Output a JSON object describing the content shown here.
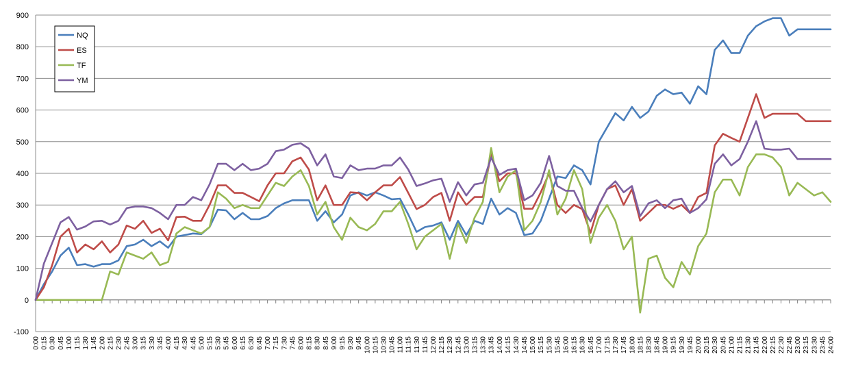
{
  "chart_data": {
    "type": "line",
    "xlabel": "",
    "ylabel": "",
    "ylim": [
      -100,
      900
    ],
    "yticks": [
      "-100",
      "0",
      "100",
      "200",
      "300",
      "400",
      "500",
      "600",
      "700",
      "800",
      "900"
    ],
    "grid": "horizontal",
    "legend": "top-left",
    "x_labels": [
      "0:00",
      "0:15",
      "0:30",
      "0:45",
      "1:00",
      "1:15",
      "1:30",
      "1:45",
      "2:00",
      "2:15",
      "2:30",
      "2:45",
      "3:00",
      "3:15",
      "3:30",
      "3:45",
      "4:00",
      "4:15",
      "4:30",
      "4:45",
      "5:00",
      "5:15",
      "5:30",
      "5:45",
      "6:00",
      "6:15",
      "6:30",
      "6:45",
      "7:00",
      "7:15",
      "7:30",
      "7:45",
      "8:00",
      "8:15",
      "8:30",
      "8:45",
      "9:00",
      "9:15",
      "9:30",
      "9:45",
      "10:00",
      "10:15",
      "10:30",
      "10:45",
      "11:00",
      "11:15",
      "11:30",
      "11:45",
      "12:00",
      "12:15",
      "12:30",
      "12:45",
      "13:00",
      "13:15",
      "13:30",
      "13:45",
      "14:00",
      "14:15",
      "14:30",
      "14:45",
      "15:00",
      "15:15",
      "15:30",
      "15:45",
      "16:00",
      "16:15",
      "16:30",
      "16:45",
      "17:00",
      "17:15",
      "17:30",
      "17:45",
      "18:00",
      "18:15",
      "18:30",
      "18:45",
      "19:00",
      "19:15",
      "19:30",
      "19:45",
      "20:00",
      "20:15",
      "20:30",
      "20:45",
      "21:00",
      "21:15",
      "21:30",
      "21:45",
      "22:00",
      "22:15",
      "22:30",
      "22:45",
      "23:00",
      "23:15",
      "23:30",
      "23:45",
      "24:00"
    ],
    "series": [
      {
        "name": "NQ",
        "color": "#4a7ebb",
        "values": [
          0,
          50,
          90,
          140,
          165,
          110,
          113,
          105,
          113,
          113,
          125,
          170,
          175,
          190,
          170,
          185,
          165,
          200,
          205,
          210,
          208,
          230,
          285,
          283,
          255,
          275,
          255,
          255,
          265,
          290,
          305,
          315,
          315,
          315,
          250,
          280,
          245,
          270,
          330,
          340,
          330,
          340,
          330,
          318,
          320,
          270,
          215,
          230,
          235,
          245,
          190,
          250,
          205,
          250,
          240,
          320,
          270,
          290,
          275,
          205,
          210,
          250,
          320,
          390,
          385,
          425,
          410,
          365,
          500,
          545,
          590,
          567,
          610,
          575,
          595,
          645,
          665,
          650,
          655,
          620,
          675,
          650,
          790,
          820,
          780,
          780,
          835,
          865,
          880,
          890,
          890,
          835,
          855,
          855,
          855,
          855,
          855
        ]
      },
      {
        "name": "ES",
        "color": "#be4b48",
        "values": [
          0,
          40,
          110,
          200,
          225,
          150,
          175,
          160,
          185,
          150,
          175,
          235,
          225,
          250,
          212,
          225,
          188,
          262,
          263,
          250,
          250,
          300,
          362,
          362,
          338,
          338,
          325,
          312,
          362,
          400,
          400,
          438,
          450,
          412,
          315,
          362,
          300,
          300,
          340,
          338,
          315,
          340,
          362,
          362,
          388,
          338,
          287,
          300,
          325,
          338,
          250,
          340,
          300,
          325,
          325,
          462,
          375,
          400,
          400,
          288,
          288,
          340,
          400,
          300,
          275,
          300,
          287,
          212,
          300,
          350,
          362,
          300,
          350,
          250,
          275,
          300,
          300,
          288,
          300,
          275,
          325,
          338,
          488,
          525,
          512,
          500,
          575,
          650,
          575,
          588,
          588,
          588,
          588,
          565,
          565,
          565,
          565
        ]
      },
      {
        "name": "TF",
        "color": "#98b954",
        "values": [
          0,
          0,
          0,
          0,
          0,
          0,
          0,
          0,
          0,
          90,
          80,
          150,
          140,
          130,
          150,
          110,
          120,
          210,
          230,
          220,
          210,
          230,
          340,
          320,
          290,
          300,
          290,
          290,
          330,
          370,
          360,
          390,
          410,
          360,
          270,
          310,
          230,
          190,
          260,
          230,
          220,
          240,
          280,
          280,
          310,
          240,
          160,
          200,
          220,
          240,
          130,
          240,
          180,
          260,
          310,
          480,
          340,
          390,
          410,
          220,
          250,
          310,
          410,
          270,
          320,
          410,
          350,
          180,
          260,
          300,
          250,
          160,
          200,
          -40,
          130,
          140,
          70,
          40,
          120,
          80,
          170,
          210,
          340,
          380,
          380,
          330,
          420,
          460,
          460,
          450,
          420,
          330,
          370,
          350,
          330,
          340,
          310
        ]
      },
      {
        "name": "YM",
        "color": "#7d60a0",
        "values": [
          0,
          115,
          180,
          245,
          262,
          222,
          232,
          248,
          250,
          238,
          250,
          290,
          295,
          295,
          290,
          275,
          255,
          300,
          300,
          325,
          315,
          365,
          430,
          430,
          410,
          430,
          410,
          415,
          430,
          470,
          475,
          490,
          495,
          478,
          425,
          460,
          390,
          385,
          425,
          410,
          415,
          415,
          425,
          425,
          450,
          412,
          360,
          368,
          378,
          383,
          310,
          372,
          330,
          365,
          370,
          450,
          395,
          410,
          415,
          315,
          330,
          370,
          455,
          360,
          345,
          345,
          290,
          248,
          300,
          350,
          375,
          340,
          360,
          265,
          305,
          315,
          290,
          315,
          320,
          275,
          290,
          318,
          430,
          460,
          425,
          445,
          500,
          565,
          478,
          475,
          475,
          478,
          445,
          445,
          445,
          445,
          445
        ]
      }
    ]
  }
}
